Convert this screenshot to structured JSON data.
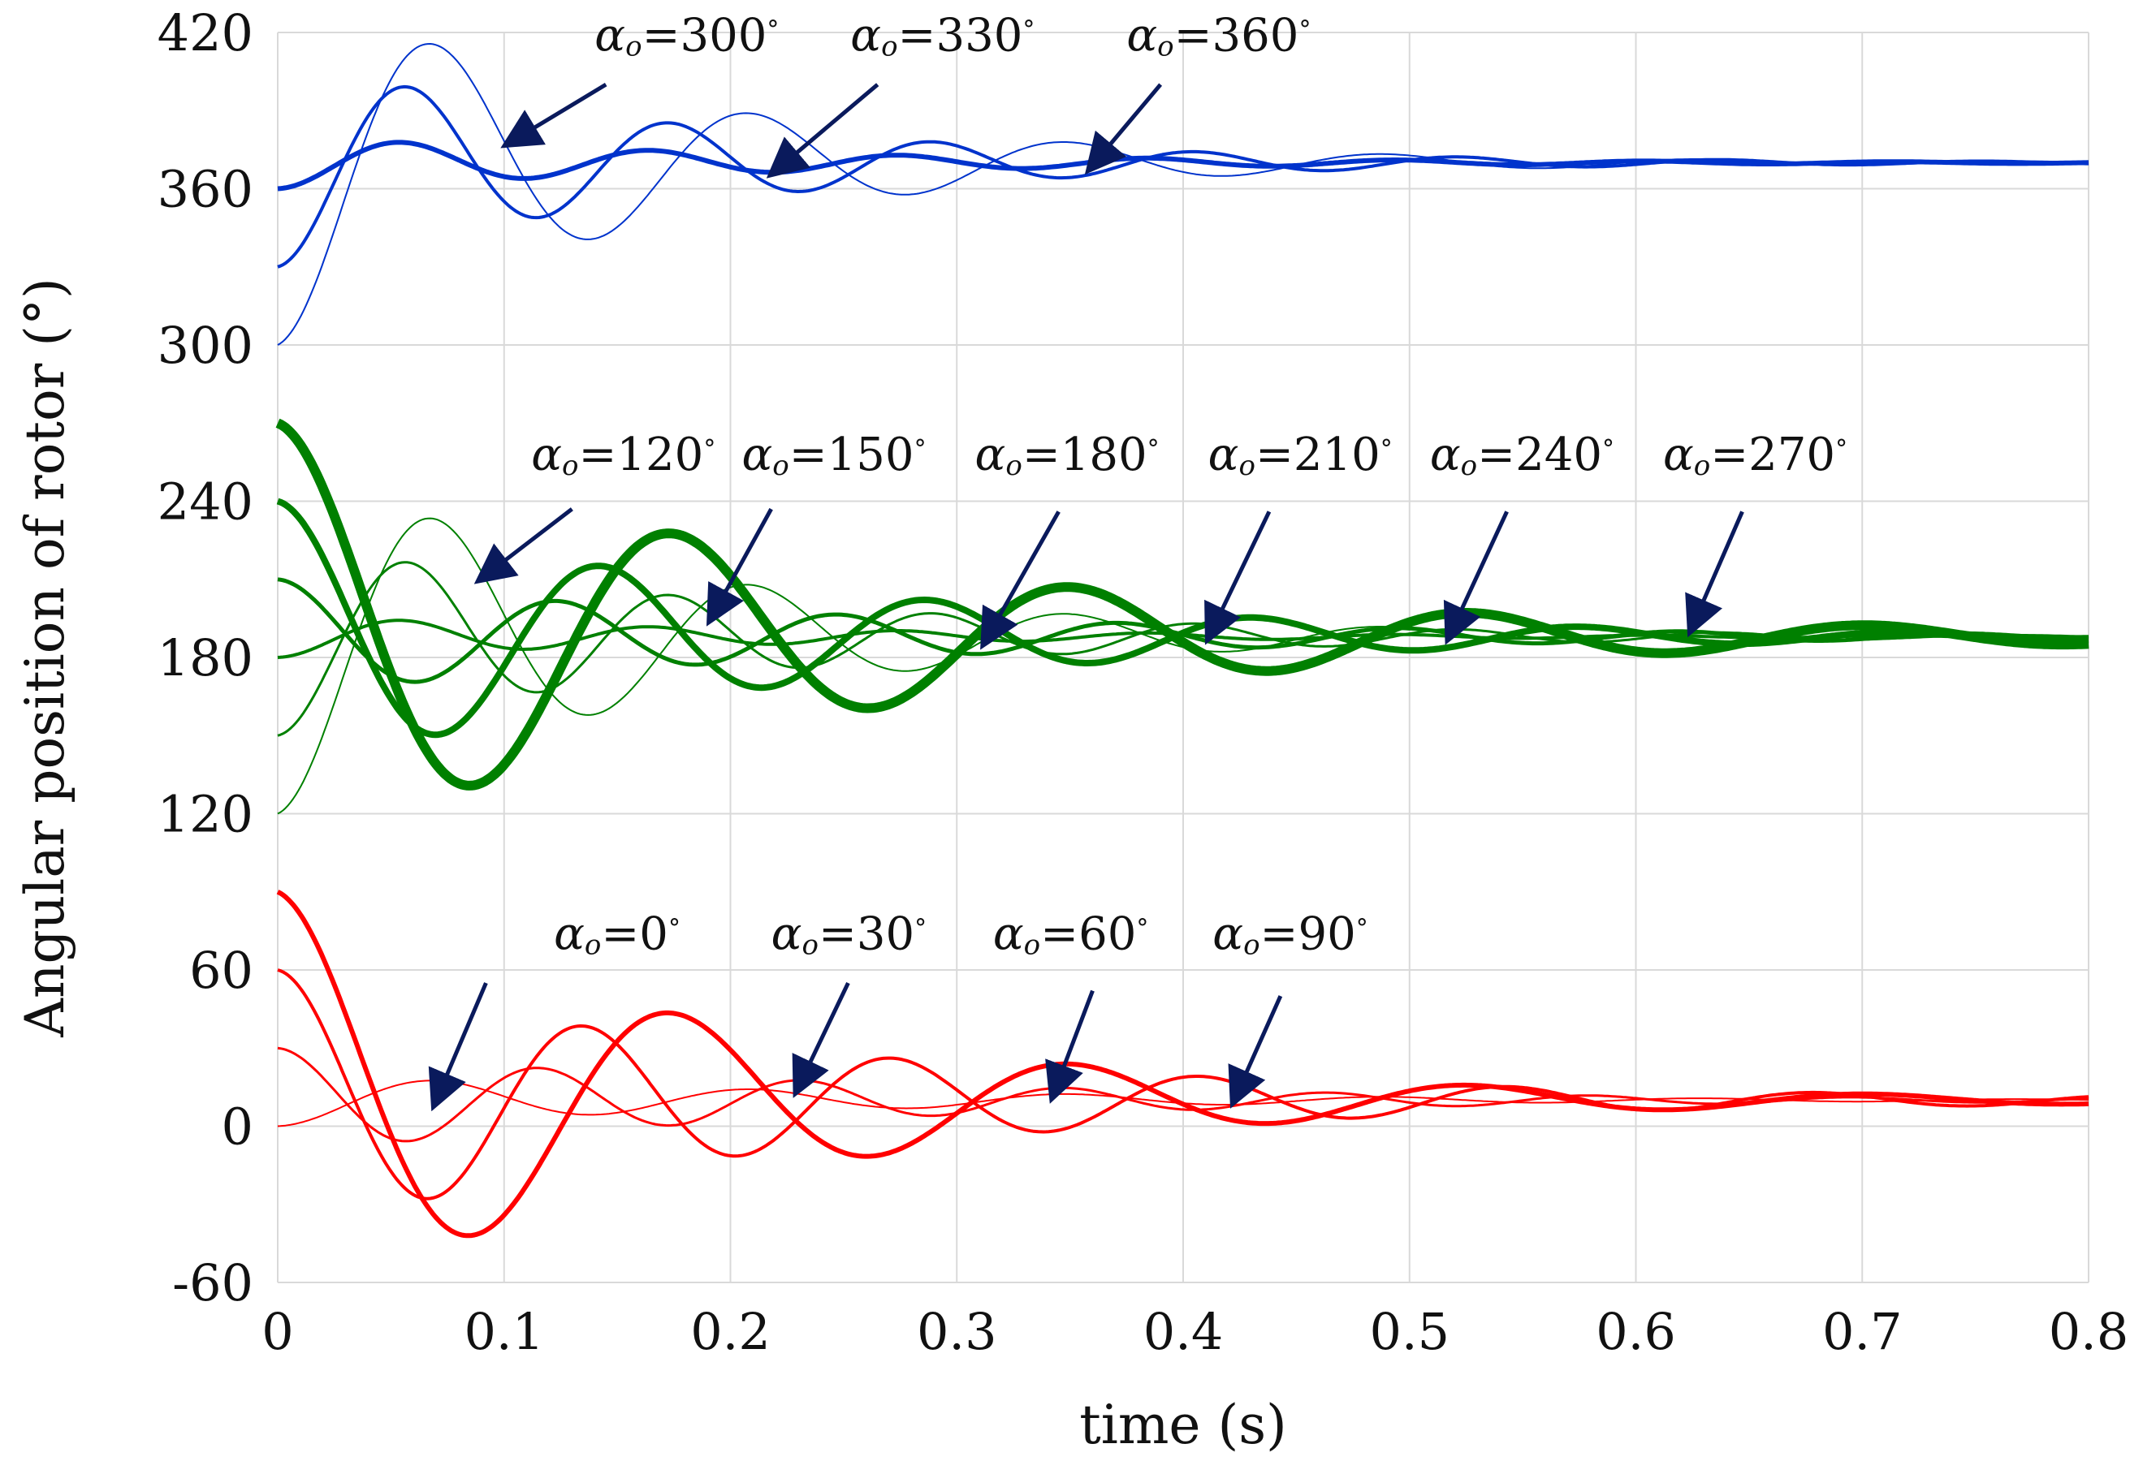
{
  "chart_data": {
    "type": "line",
    "xlabel": "time (s)",
    "ylabel": "Angular position of rotor (°)",
    "xlim": [
      0,
      0.8
    ],
    "ylim": [
      -60,
      420
    ],
    "xticks": [
      "0",
      "0.1",
      "0.2",
      "0.3",
      "0.4",
      "0.5",
      "0.6",
      "0.7",
      "0.8"
    ],
    "yticks": [
      "-60",
      "0",
      "60",
      "120",
      "180",
      "240",
      "300",
      "360",
      "420"
    ],
    "grid": true,
    "colors": {
      "red": "#ff0000",
      "green": "#008000",
      "blue": "#0033cc",
      "arrow": "#0a1a5c",
      "grid": "#d9d9d9"
    },
    "series": [
      {
        "name": "α0=0°",
        "color": "red",
        "start": 0,
        "final": 10,
        "amp": 24,
        "tau": 0.24,
        "peak_t": 0.07,
        "width": 2
      },
      {
        "name": "α0=30°",
        "color": "red",
        "start": 30,
        "final": 10,
        "amp": 30,
        "tau": 0.24,
        "peak_t": 0.058,
        "width": 3
      },
      {
        "name": "α0=60°",
        "color": "red",
        "start": 60,
        "final": 10,
        "amp": 50,
        "tau": 0.24,
        "peak_t": 0.068,
        "width": 4
      },
      {
        "name": "α0=90°",
        "color": "red",
        "start": 90,
        "final": 10,
        "amp": 80,
        "tau": 0.2,
        "peak_t": 0.088,
        "width": 6
      },
      {
        "name": "α0=120°",
        "color": "green",
        "start": 120,
        "final": 188,
        "amp": 68,
        "tau": 0.17,
        "peak_t": 0.07,
        "width": 2
      },
      {
        "name": "α0=150°",
        "color": "green",
        "start": 150,
        "final": 188,
        "amp": 38,
        "tau": 0.2,
        "peak_t": 0.058,
        "width": 3
      },
      {
        "name": "α0=180°",
        "color": "green",
        "start": 180,
        "final": 188,
        "amp": 16,
        "tau": 0.22,
        "peak_t": 0.055,
        "width": 4
      },
      {
        "name": "α0=210°",
        "color": "green",
        "start": 210,
        "final": 188,
        "amp": 32,
        "tau": 0.26,
        "peak_t": 0.062,
        "width": 5
      },
      {
        "name": "α0=240°",
        "color": "green",
        "start": 240,
        "final": 188,
        "amp": 60,
        "tau": 0.22,
        "peak_t": 0.072,
        "width": 8
      },
      {
        "name": "α0=270°",
        "color": "green",
        "start": 270,
        "final": 188,
        "amp": 82,
        "tau": 0.24,
        "peak_t": 0.088,
        "width": 12
      },
      {
        "name": "α0=300°",
        "color": "blue",
        "start": 300,
        "final": 370,
        "amp": 70,
        "tau": 0.16,
        "peak_t": 0.07,
        "width": 2
      },
      {
        "name": "α0=330°",
        "color": "blue",
        "start": 330,
        "final": 370,
        "amp": 40,
        "tau": 0.18,
        "peak_t": 0.058,
        "width": 4
      },
      {
        "name": "α0=360°",
        "color": "blue",
        "start": 360,
        "final": 370,
        "amp": 10,
        "tau": 0.22,
        "peak_t": 0.055,
        "width": 6
      }
    ],
    "annotations": [
      {
        "sym": "α",
        "sub": "o",
        "text": "=300",
        "deg": "°",
        "x": 0.14,
        "y": 413,
        "arrow_to": [
          0.103,
          378
        ],
        "arrow_from": [
          0.145,
          400
        ]
      },
      {
        "sym": "α",
        "sub": "o",
        "text": "=330",
        "deg": "°",
        "x": 0.253,
        "y": 413,
        "arrow_to": [
          0.22,
          367
        ],
        "arrow_from": [
          0.265,
          400
        ]
      },
      {
        "sym": "α",
        "sub": "o",
        "text": "=360",
        "deg": "°",
        "x": 0.375,
        "y": 413,
        "arrow_to": [
          0.36,
          369
        ],
        "arrow_from": [
          0.39,
          400
        ]
      },
      {
        "sym": "α",
        "sub": "o",
        "text": "=120",
        "deg": "°",
        "x": 0.112,
        "y": 252,
        "arrow_to": [
          0.091,
          211
        ],
        "arrow_from": [
          0.13,
          237
        ]
      },
      {
        "sym": "α",
        "sub": "o",
        "text": "=150",
        "deg": "°",
        "x": 0.205,
        "y": 252,
        "arrow_to": [
          0.192,
          196
        ],
        "arrow_from": [
          0.218,
          237
        ]
      },
      {
        "sym": "α",
        "sub": "o",
        "text": "=180",
        "deg": "°",
        "x": 0.308,
        "y": 252,
        "arrow_to": [
          0.313,
          187
        ],
        "arrow_from": [
          0.345,
          236
        ]
      },
      {
        "sym": "α",
        "sub": "o",
        "text": "=210",
        "deg": "°",
        "x": 0.411,
        "y": 252,
        "arrow_to": [
          0.412,
          189
        ],
        "arrow_from": [
          0.438,
          236
        ]
      },
      {
        "sym": "α",
        "sub": "o",
        "text": "=240",
        "deg": "°",
        "x": 0.509,
        "y": 252,
        "arrow_to": [
          0.518,
          189
        ],
        "arrow_from": [
          0.543,
          236
        ]
      },
      {
        "sym": "α",
        "sub": "o",
        "text": "=270",
        "deg": "°",
        "x": 0.612,
        "y": 252,
        "arrow_to": [
          0.625,
          192
        ],
        "arrow_from": [
          0.647,
          236
        ]
      },
      {
        "sym": "α",
        "sub": "o",
        "text": "=0",
        "deg": "°",
        "x": 0.122,
        "y": 68,
        "arrow_to": [
          0.07,
          10
        ],
        "arrow_from": [
          0.092,
          55
        ]
      },
      {
        "sym": "α",
        "sub": "o",
        "text": "=30",
        "deg": "°",
        "x": 0.218,
        "y": 68,
        "arrow_to": [
          0.23,
          15
        ],
        "arrow_from": [
          0.252,
          55
        ]
      },
      {
        "sym": "α",
        "sub": "o",
        "text": "=60",
        "deg": "°",
        "x": 0.316,
        "y": 68,
        "arrow_to": [
          0.343,
          13
        ],
        "arrow_from": [
          0.36,
          52
        ]
      },
      {
        "sym": "α",
        "sub": "o",
        "text": "=90",
        "deg": "°",
        "x": 0.413,
        "y": 68,
        "arrow_to": [
          0.423,
          11
        ],
        "arrow_from": [
          0.443,
          50
        ]
      }
    ]
  }
}
